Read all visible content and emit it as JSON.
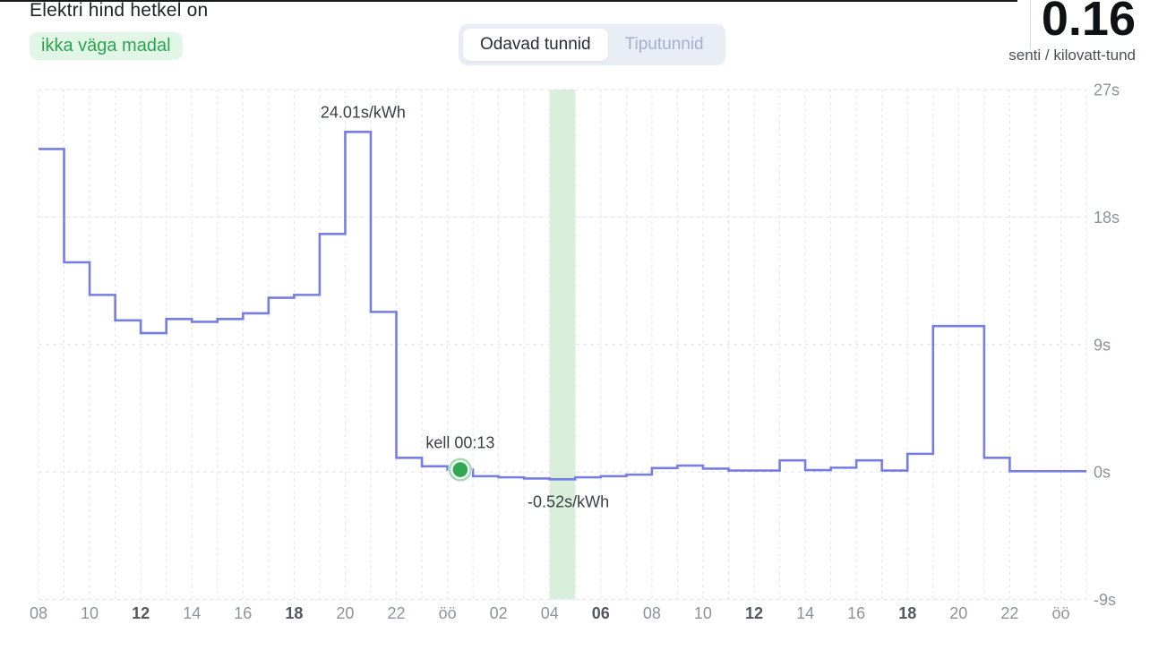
{
  "header": {
    "title": "Elektri hind hetkel on",
    "status_badge": "ikka väga madal"
  },
  "toggle": {
    "options": [
      {
        "label": "Odavad tunnid",
        "active": true
      },
      {
        "label": "Tiputunnid",
        "active": false
      }
    ]
  },
  "price": {
    "value": "0.16",
    "unit": "senti / kilovatt-tund"
  },
  "chart_data": {
    "type": "line",
    "step": true,
    "unit": "s/kWh",
    "start_hour": 8,
    "hours_span": 41,
    "values": [
      22.8,
      14.8,
      12.5,
      10.7,
      9.8,
      10.8,
      10.6,
      10.8,
      11.2,
      12.3,
      12.5,
      16.8,
      24.01,
      11.3,
      1.0,
      0.4,
      0.16,
      -0.3,
      -0.38,
      -0.46,
      -0.52,
      -0.38,
      -0.3,
      -0.19,
      0.27,
      0.45,
      0.23,
      0.1,
      0.1,
      0.82,
      0.13,
      0.3,
      0.82,
      0.1,
      1.28,
      10.3,
      10.3,
      1.0,
      0.05,
      0.05,
      0.05
    ],
    "x_tick_labels": [
      {
        "label": "08",
        "bold": false
      },
      {
        "label": "10",
        "bold": false
      },
      {
        "label": "12",
        "bold": true
      },
      {
        "label": "14",
        "bold": false
      },
      {
        "label": "16",
        "bold": false
      },
      {
        "label": "18",
        "bold": true
      },
      {
        "label": "20",
        "bold": false
      },
      {
        "label": "22",
        "bold": false
      },
      {
        "label": "öö",
        "bold": false
      },
      {
        "label": "02",
        "bold": false
      },
      {
        "label": "04",
        "bold": false
      },
      {
        "label": "06",
        "bold": true
      },
      {
        "label": "08",
        "bold": false
      },
      {
        "label": "10",
        "bold": false
      },
      {
        "label": "12",
        "bold": true
      },
      {
        "label": "14",
        "bold": false
      },
      {
        "label": "16",
        "bold": false
      },
      {
        "label": "18",
        "bold": true
      },
      {
        "label": "20",
        "bold": false
      },
      {
        "label": "22",
        "bold": false
      },
      {
        "label": "öö",
        "bold": false
      }
    ],
    "y_ticks": [
      {
        "label": "27s",
        "value": 27
      },
      {
        "label": "18s",
        "value": 18
      },
      {
        "label": "9s",
        "value": 9
      },
      {
        "label": "0s",
        "value": 0
      },
      {
        "label": "-9s",
        "value": -9
      }
    ],
    "ylim": [
      -9,
      27
    ],
    "grid": "dashed",
    "legend": "none",
    "highlight_band": {
      "start_offset": 20,
      "end_offset": 21
    },
    "marker": {
      "offset": 16.5,
      "value": 0.16
    },
    "annotations": {
      "peak": {
        "label": "24.01s/kWh",
        "offset": 12.7,
        "value": 24.01
      },
      "min": {
        "label": "-0.52s/kWh",
        "offset": 20.73,
        "value": -0.52
      },
      "current": {
        "label": "kell 00:13",
        "offset": 16.5,
        "value": 0.16
      }
    },
    "colors": {
      "line": "#767ee4",
      "band": "#d9eedb",
      "marker": "#33a852",
      "marker_ring": "#a5dcb1",
      "grid": "#e3e3e8",
      "tick": "#8d939c",
      "tick_bold": "#52575e",
      "annotation": "#3a3f46"
    }
  }
}
